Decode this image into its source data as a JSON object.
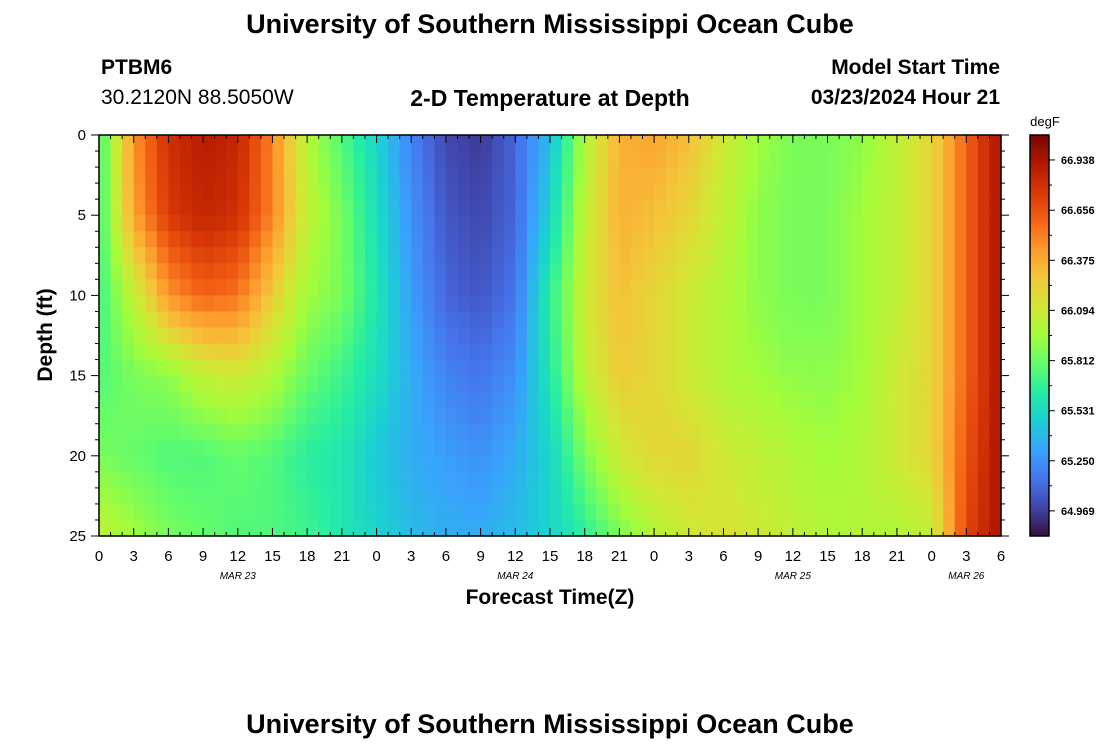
{
  "header": {
    "title": "University of Southern Mississippi Ocean Cube",
    "station_id": "PTBM6",
    "coordinates": "30.2120N  88.5050W",
    "plot_title": "2-D Temperature at Depth",
    "model_label": "Model Start Time",
    "model_time": "03/23/2024 Hour 21"
  },
  "footer": {
    "title": "University of Southern Mississippi Ocean Cube"
  },
  "chart_data": {
    "type": "heatmap",
    "variable": "Temperature",
    "units": "degF",
    "xlabel": "Forecast Time(Z)",
    "ylabel": "Depth (ft)",
    "xlim_hours_from_mar23_00z": [
      0,
      78
    ],
    "ylim_ft": [
      0,
      25
    ],
    "y_inverted": true,
    "x_tick_labels": [
      "0",
      "3",
      "6",
      "9",
      "12",
      "15",
      "18",
      "21",
      "0",
      "3",
      "6",
      "9",
      "12",
      "15",
      "18",
      "21",
      "0",
      "3",
      "6",
      "9",
      "12",
      "15",
      "18",
      "21",
      "0",
      "3",
      "6"
    ],
    "y_tick_labels": [
      "0",
      "5",
      "10",
      "15",
      "20",
      "25"
    ],
    "day_labels": [
      {
        "label": "MAR 23",
        "hour": 12
      },
      {
        "label": "MAR 24",
        "hour": 36
      },
      {
        "label": "MAR 25",
        "hour": 60
      },
      {
        "label": "MAR 26",
        "hour": 75
      }
    ],
    "colorbar": {
      "title": "degF",
      "min": 64.828,
      "max": 67.078,
      "tick_labels": [
        "64.969",
        "65.250",
        "65.531",
        "65.812",
        "66.094",
        "66.375",
        "66.656",
        "66.938"
      ],
      "colormap": [
        "#30123b",
        "#4145ab",
        "#4675ed",
        "#39a2fc",
        "#1bcfd4",
        "#24eca6",
        "#61fc6c",
        "#a4fc3b",
        "#d1e834",
        "#f3c63a",
        "#fe9b2d",
        "#f36315",
        "#d93806",
        "#b11901",
        "#7a0402"
      ]
    },
    "depths_ft": [
      0,
      5,
      10,
      15,
      20,
      25
    ],
    "hours": [
      0,
      3,
      6,
      9,
      12,
      15,
      18,
      21,
      24,
      27,
      30,
      33,
      36,
      39,
      42,
      45,
      48,
      51,
      54,
      57,
      60,
      63,
      66,
      69,
      72,
      75,
      78
    ],
    "values_degF": [
      [
        65.7,
        66.45,
        66.8,
        66.9,
        66.85,
        66.5,
        66.0,
        65.75,
        65.5,
        65.2,
        65.0,
        64.95,
        65.1,
        65.4,
        66.0,
        66.35,
        66.4,
        66.3,
        66.1,
        65.95,
        65.85,
        65.85,
        65.9,
        66.05,
        66.2,
        66.6,
        66.95
      ],
      [
        65.7,
        66.4,
        66.75,
        66.85,
        66.8,
        66.5,
        66.05,
        65.85,
        65.55,
        65.25,
        65.05,
        65.0,
        65.1,
        65.5,
        66.05,
        66.35,
        66.3,
        66.2,
        66.05,
        65.9,
        65.85,
        65.85,
        65.95,
        66.05,
        66.2,
        66.6,
        66.95
      ],
      [
        65.7,
        66.05,
        66.45,
        66.6,
        66.55,
        66.25,
        65.95,
        65.85,
        65.6,
        65.3,
        65.1,
        65.05,
        65.15,
        65.65,
        66.1,
        66.3,
        66.2,
        66.1,
        66.0,
        65.9,
        65.85,
        65.85,
        65.95,
        66.05,
        66.2,
        66.6,
        66.95
      ],
      [
        65.75,
        65.85,
        65.9,
        66.05,
        66.1,
        66.0,
        65.8,
        65.7,
        65.55,
        65.35,
        65.2,
        65.15,
        65.25,
        65.6,
        66.05,
        66.25,
        66.2,
        66.1,
        66.0,
        65.95,
        65.9,
        65.9,
        65.95,
        66.1,
        66.2,
        66.6,
        66.95
      ],
      [
        65.85,
        65.8,
        65.75,
        65.75,
        65.8,
        65.75,
        65.65,
        65.6,
        65.45,
        65.35,
        65.3,
        65.25,
        65.35,
        65.5,
        65.85,
        66.1,
        66.2,
        66.2,
        66.1,
        66.05,
        66.0,
        65.95,
        66.0,
        66.1,
        66.2,
        66.65,
        66.95
      ],
      [
        66.05,
        65.95,
        65.85,
        65.8,
        65.75,
        65.75,
        65.7,
        65.6,
        65.5,
        65.4,
        65.35,
        65.35,
        65.4,
        65.5,
        65.65,
        65.85,
        66.0,
        66.1,
        66.15,
        66.1,
        66.05,
        66.0,
        66.0,
        66.0,
        66.05,
        66.7,
        66.95
      ]
    ]
  }
}
